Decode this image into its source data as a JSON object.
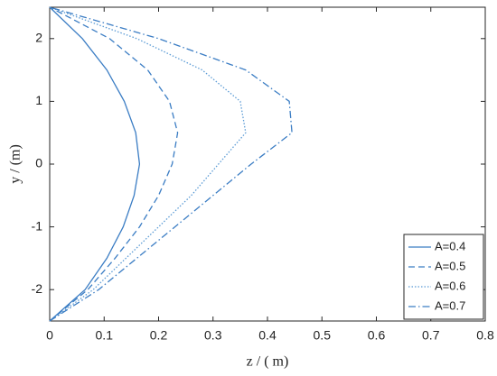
{
  "chart_data": {
    "type": "line",
    "xlabel": "z / ( m)",
    "ylabel": "y / (m)",
    "y": [
      -2.5,
      -2,
      -1.5,
      -1,
      -0.5,
      0,
      0.5,
      1,
      1.5,
      2,
      2.5
    ],
    "series": [
      {
        "name": "A=0.4",
        "color": "#3b7dc4",
        "dash": "solid",
        "values": [
          0,
          0.065,
          0.105,
          0.135,
          0.155,
          0.165,
          0.158,
          0.137,
          0.105,
          0.06,
          0
        ]
      },
      {
        "name": "A=0.5",
        "color": "#3b7dc4",
        "dash": "dashed",
        "values": [
          0,
          0.07,
          0.12,
          0.165,
          0.2,
          0.225,
          0.235,
          0.22,
          0.18,
          0.11,
          0
        ]
      },
      {
        "name": "A=0.6",
        "color": "#5b9bd5",
        "dash": "dotted",
        "values": [
          0,
          0.08,
          0.14,
          0.2,
          0.26,
          0.31,
          0.36,
          0.35,
          0.28,
          0.16,
          0
        ]
      },
      {
        "name": "A=0.7",
        "color": "#3b7dc4",
        "dash": "dashdot",
        "values": [
          0,
          0.09,
          0.16,
          0.23,
          0.3,
          0.37,
          0.445,
          0.44,
          0.36,
          0.2,
          0
        ]
      }
    ],
    "xlim": [
      0,
      0.8
    ],
    "xticks": [
      0,
      0.1,
      0.2,
      0.3,
      0.4,
      0.5,
      0.6,
      0.7,
      0.8
    ],
    "ylim": [
      -2.5,
      2.5
    ],
    "yticks": [
      -2,
      -1,
      0,
      1,
      2
    ],
    "legend": "lower right"
  }
}
